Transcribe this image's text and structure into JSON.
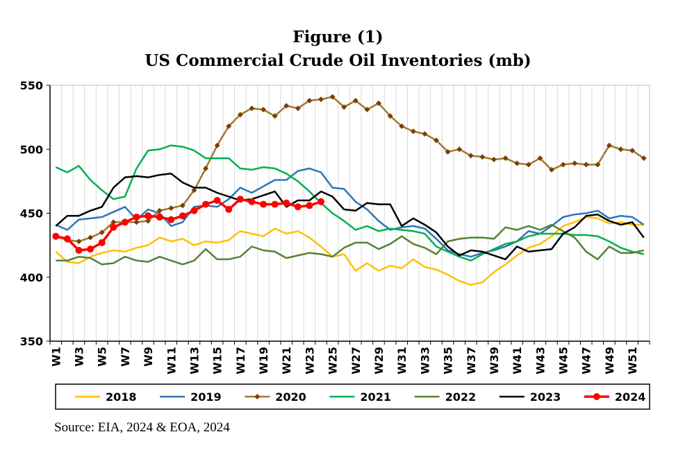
{
  "chart_data": {
    "type": "line",
    "title": "Figure (1)",
    "subtitle": "US Commercial Crude Oil Inventories (mb)",
    "xlabel": "",
    "ylabel": "",
    "ylim": [
      350,
      550
    ],
    "yticks": [
      350,
      400,
      450,
      500,
      550
    ],
    "x_tick_labels": [
      "W1",
      "W3",
      "W5",
      "W7",
      "W9",
      "W11",
      "W13",
      "W15",
      "W17",
      "W19",
      "W21",
      "W23",
      "W25",
      "W27",
      "W29",
      "W31",
      "W33",
      "W35",
      "W37",
      "W39",
      "W41",
      "W43",
      "W45",
      "W47",
      "W49",
      "W51"
    ],
    "x_tick_weeks": [
      1,
      3,
      5,
      7,
      9,
      11,
      13,
      15,
      17,
      19,
      21,
      23,
      25,
      27,
      29,
      31,
      33,
      35,
      37,
      39,
      41,
      43,
      45,
      47,
      49,
      51
    ],
    "weeks": 52,
    "grid": "vertical",
    "legend_position": "bottom",
    "series": [
      {
        "name": "2018",
        "color": "#FFC000",
        "marker": "none",
        "values": [
          420,
          412,
          411,
          416,
          419,
          421,
          420,
          423,
          425,
          431,
          428,
          430,
          425,
          428,
          427,
          429,
          436,
          434,
          432,
          438,
          434,
          436,
          431,
          424,
          416,
          418,
          405,
          411,
          405,
          409,
          407,
          414,
          408,
          406,
          402,
          397,
          394,
          396,
          404,
          410,
          417,
          423,
          426,
          432,
          440,
          443,
          447,
          446,
          442,
          443,
          441,
          441
        ]
      },
      {
        "name": "2019",
        "color": "#2E75B6",
        "marker": "none",
        "values": [
          441,
          437,
          445,
          446,
          447,
          451,
          455,
          445,
          453,
          450,
          440,
          443,
          455,
          456,
          455,
          461,
          470,
          466,
          471,
          476,
          476,
          483,
          485,
          482,
          470,
          469,
          459,
          453,
          444,
          437,
          439,
          440,
          438,
          430,
          421,
          418,
          416,
          419,
          421,
          424,
          428,
          436,
          434,
          440,
          447,
          449,
          450,
          452,
          446,
          448,
          447,
          441
        ]
      },
      {
        "name": "2020",
        "color": "#A07830",
        "marker": "diamond",
        "marker_color": "#7B3F00",
        "values": [
          432,
          429,
          428,
          431,
          435,
          443,
          443,
          443,
          444,
          452,
          454,
          456,
          468,
          485,
          503,
          518,
          527,
          532,
          531,
          526,
          534,
          532,
          538,
          539,
          541,
          533,
          538,
          531,
          536,
          526,
          518,
          514,
          512,
          507,
          498,
          500,
          495,
          494,
          492,
          493,
          489,
          488,
          493,
          484,
          488,
          489,
          488,
          488,
          503,
          500,
          499,
          493
        ]
      },
      {
        "name": "2021",
        "color": "#00B050",
        "marker": "none",
        "values": [
          486,
          482,
          487,
          476,
          468,
          461,
          463,
          485,
          499,
          500,
          503,
          502,
          499,
          493,
          493,
          493,
          485,
          484,
          486,
          485,
          481,
          475,
          467,
          458,
          450,
          444,
          437,
          440,
          436,
          438,
          437,
          436,
          434,
          424,
          420,
          416,
          413,
          418,
          422,
          426,
          428,
          432,
          434,
          434,
          434,
          433,
          433,
          432,
          428,
          423,
          420,
          418
        ]
      },
      {
        "name": "2022",
        "color": "#548235",
        "marker": "none",
        "values": [
          413,
          413,
          416,
          415,
          410,
          411,
          416,
          413,
          412,
          416,
          413,
          410,
          413,
          422,
          414,
          414,
          416,
          424,
          421,
          420,
          415,
          417,
          419,
          418,
          416,
          423,
          427,
          427,
          422,
          426,
          432,
          426,
          423,
          418,
          428,
          430,
          431,
          431,
          430,
          439,
          437,
          440,
          437,
          441,
          436,
          431,
          420,
          414,
          424,
          419,
          419,
          421
        ]
      },
      {
        "name": "2023",
        "color": "#000000",
        "marker": "none",
        "values": [
          440,
          448,
          448,
          452,
          455,
          470,
          478,
          479,
          478,
          480,
          481,
          474,
          470,
          470,
          466,
          463,
          460,
          461,
          464,
          467,
          455,
          460,
          460,
          467,
          463,
          453,
          452,
          458,
          457,
          457,
          440,
          446,
          441,
          435,
          424,
          417,
          421,
          420,
          417,
          414,
          424,
          420,
          421,
          422,
          434,
          439,
          448,
          449,
          444,
          441,
          443,
          431
        ]
      },
      {
        "name": "2024",
        "color": "#FF0000",
        "marker": "circle",
        "marker_color": "#FF0000",
        "values": [
          432,
          430,
          421,
          422,
          427,
          439,
          443,
          447,
          448,
          447,
          445,
          448,
          452,
          457,
          460,
          453,
          461,
          459,
          457,
          457,
          458,
          455,
          456,
          459
        ]
      }
    ],
    "source": "Source: EIA, 2024 & EOA, 2024"
  }
}
